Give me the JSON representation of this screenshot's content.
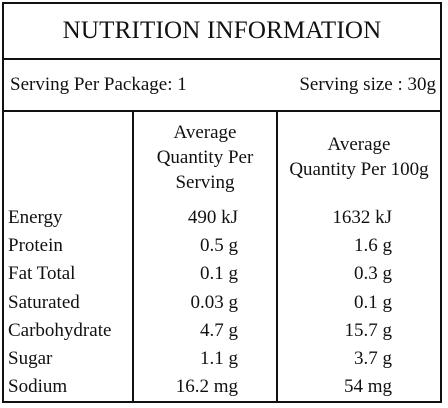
{
  "title": "NUTRITION INFORMATION",
  "serving": {
    "per_package": "Serving Per Package: 1",
    "size": "Serving size : 30g"
  },
  "columns": {
    "per_serving": "Average\nQuantity Per\nServing",
    "per_100g": "Average\nQuantity Per 100g"
  },
  "rows": [
    {
      "label": "Energy",
      "per_serving": "490 kJ",
      "per_100g": "1632 kJ"
    },
    {
      "label": "Protein",
      "per_serving": "0.5 g",
      "per_100g": "1.6 g"
    },
    {
      "label": "Fat Total",
      "per_serving": "0.1 g",
      "per_100g": "0.3 g"
    },
    {
      "label": "Saturated",
      "per_serving": "0.03 g",
      "per_100g": "0.1 g"
    },
    {
      "label": "Carbohydrate",
      "per_serving": "4.7 g",
      "per_100g": "15.7 g"
    },
    {
      "label": "Sugar",
      "per_serving": "1.1 g",
      "per_100g": "3.7 g"
    },
    {
      "label": "Sodium",
      "per_serving": "16.2 mg",
      "per_100g": "54 mg"
    }
  ]
}
